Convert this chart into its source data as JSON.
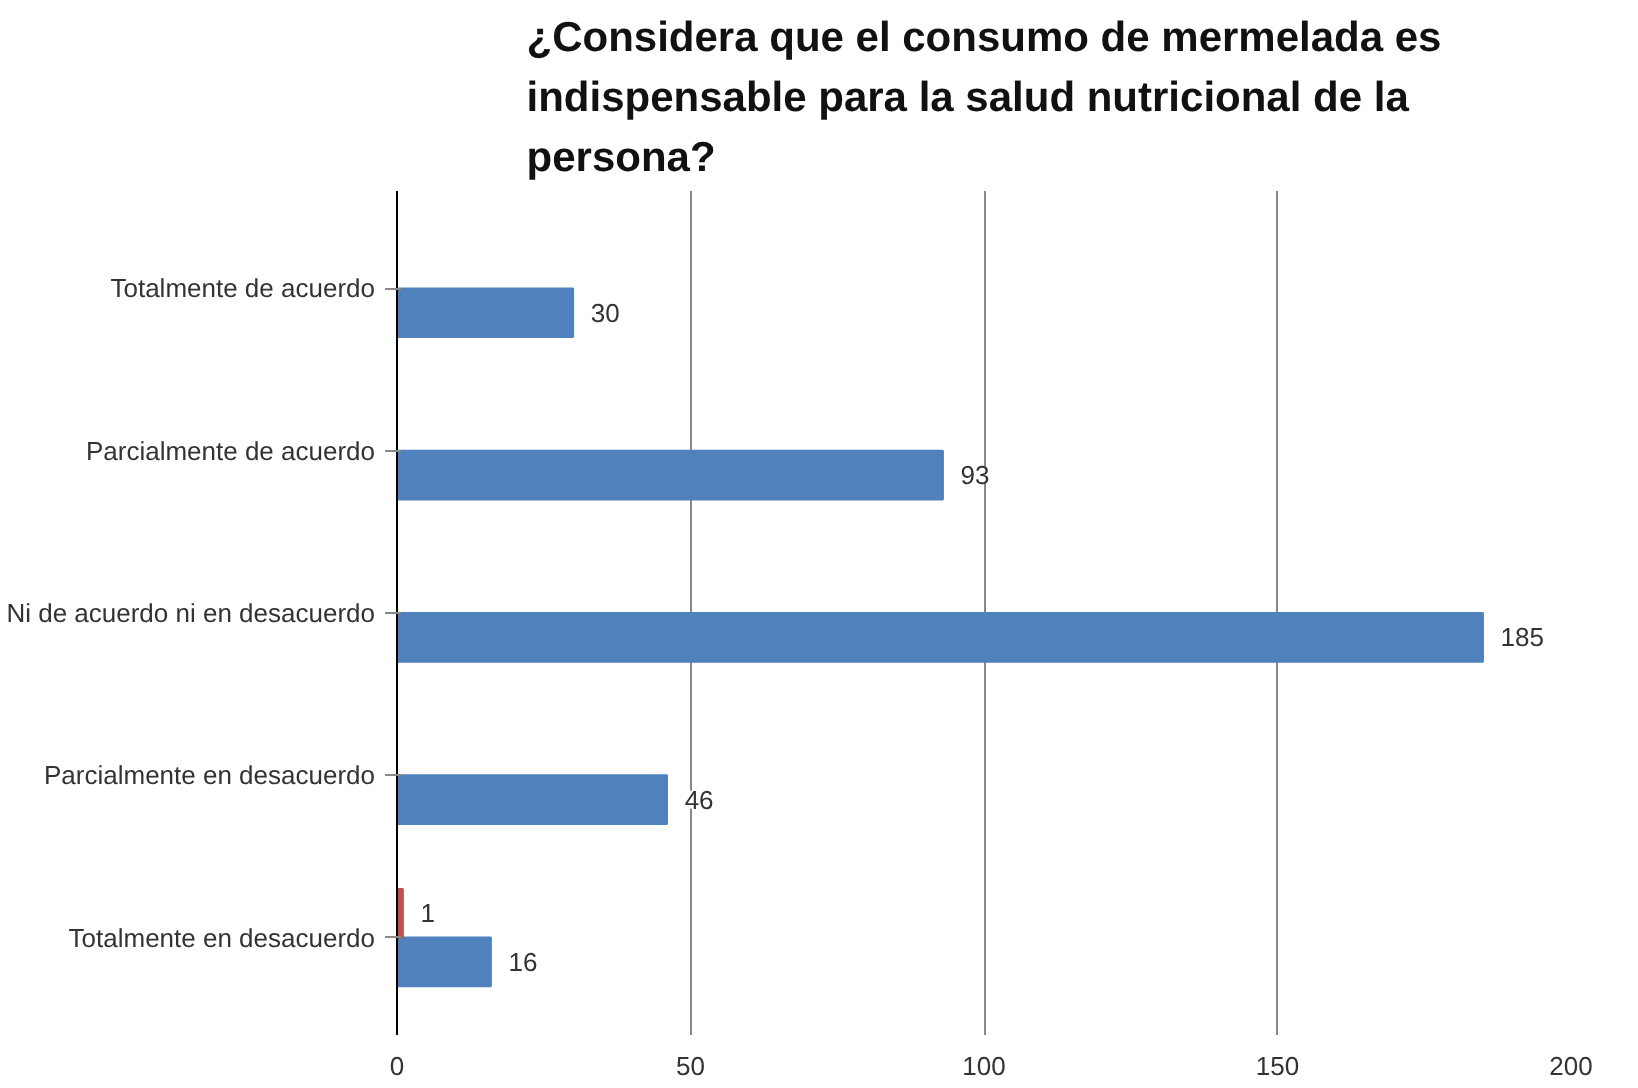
{
  "chart_data": {
    "type": "bar",
    "orientation": "horizontal",
    "title": "¿Considera que el consumo de mermelada es indispensable para la salud nutricional de la persona?",
    "categories": [
      "Totalmente de acuerdo",
      "Parcialmente de acuerdo",
      "Ni de acuerdo ni en desacuerdo",
      "Parcialmente en desacuerdo",
      "Totalmente en desacuerdo"
    ],
    "series": [
      {
        "color": "#4f81bd",
        "values": [
          30,
          93,
          185,
          46,
          16
        ]
      },
      {
        "color": "#c0504d",
        "values": [
          null,
          null,
          null,
          null,
          1
        ]
      }
    ],
    "xlim": [
      0,
      200
    ],
    "xticks": [
      0,
      50,
      100,
      150,
      200
    ],
    "grid": "x",
    "data_labels": true
  }
}
